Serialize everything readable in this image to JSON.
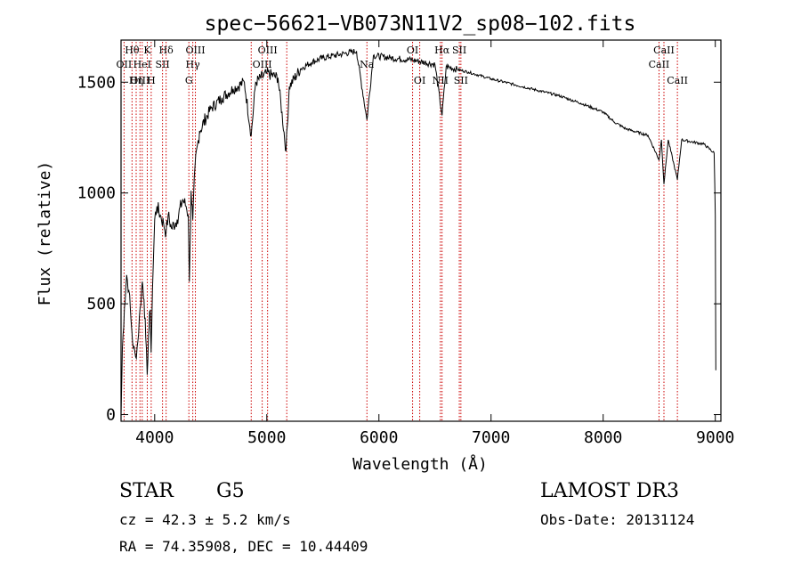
{
  "chart_data": {
    "type": "line",
    "title": "spec−56621−VB073N11V2_sp08−102.fits",
    "xlabel": "Wavelength (Å)",
    "ylabel": "Flux (relative)",
    "xlim": [
      3700,
      9050
    ],
    "ylim": [
      -30,
      1690
    ],
    "x_ticks": [
      4000,
      5000,
      6000,
      7000,
      8000,
      9000
    ],
    "x_tick_labels": [
      "4000",
      "5000",
      "6000",
      "7000",
      "8000",
      "9000"
    ],
    "y_ticks": [
      0,
      500,
      1000,
      1500
    ],
    "y_tick_labels": [
      "0",
      "500",
      "1000",
      "1500"
    ],
    "line_color": "#000000",
    "marker_color": "#cc0000",
    "spectrum_anchors": [
      {
        "x": 3700,
        "y": 0
      },
      {
        "x": 3712,
        "y": 300
      },
      {
        "x": 3730,
        "y": 480
      },
      {
        "x": 3750,
        "y": 630
      },
      {
        "x": 3770,
        "y": 560
      },
      {
        "x": 3790,
        "y": 420
      },
      {
        "x": 3810,
        "y": 300
      },
      {
        "x": 3830,
        "y": 260
      },
      {
        "x": 3850,
        "y": 330
      },
      {
        "x": 3870,
        "y": 480
      },
      {
        "x": 3890,
        "y": 600
      },
      {
        "x": 3905,
        "y": 520
      },
      {
        "x": 3920,
        "y": 350
      },
      {
        "x": 3933,
        "y": 180
      },
      {
        "x": 3945,
        "y": 360
      },
      {
        "x": 3960,
        "y": 470
      },
      {
        "x": 3968,
        "y": 280
      },
      {
        "x": 3980,
        "y": 560
      },
      {
        "x": 4000,
        "y": 880
      },
      {
        "x": 4020,
        "y": 940
      },
      {
        "x": 4050,
        "y": 900
      },
      {
        "x": 4080,
        "y": 860
      },
      {
        "x": 4102,
        "y": 820
      },
      {
        "x": 4120,
        "y": 900
      },
      {
        "x": 4150,
        "y": 840
      },
      {
        "x": 4200,
        "y": 880
      },
      {
        "x": 4250,
        "y": 970
      },
      {
        "x": 4280,
        "y": 940
      },
      {
        "x": 4300,
        "y": 900
      },
      {
        "x": 4310,
        "y": 600
      },
      {
        "x": 4325,
        "y": 1010
      },
      {
        "x": 4340,
        "y": 880
      },
      {
        "x": 4360,
        "y": 1120
      },
      {
        "x": 4400,
        "y": 1280
      },
      {
        "x": 4500,
        "y": 1380
      },
      {
        "x": 4600,
        "y": 1430
      },
      {
        "x": 4700,
        "y": 1470
      },
      {
        "x": 4800,
        "y": 1500
      },
      {
        "x": 4861,
        "y": 1260
      },
      {
        "x": 4900,
        "y": 1500
      },
      {
        "x": 5000,
        "y": 1540
      },
      {
        "x": 5100,
        "y": 1520
      },
      {
        "x": 5172,
        "y": 1190
      },
      {
        "x": 5200,
        "y": 1480
      },
      {
        "x": 5300,
        "y": 1560
      },
      {
        "x": 5400,
        "y": 1590
      },
      {
        "x": 5500,
        "y": 1610
      },
      {
        "x": 5600,
        "y": 1620
      },
      {
        "x": 5700,
        "y": 1630
      },
      {
        "x": 5800,
        "y": 1640
      },
      {
        "x": 5893,
        "y": 1330
      },
      {
        "x": 5950,
        "y": 1620
      },
      {
        "x": 6100,
        "y": 1610
      },
      {
        "x": 6300,
        "y": 1600
      },
      {
        "x": 6500,
        "y": 1580
      },
      {
        "x": 6563,
        "y": 1350
      },
      {
        "x": 6600,
        "y": 1570
      },
      {
        "x": 6800,
        "y": 1545
      },
      {
        "x": 7000,
        "y": 1515
      },
      {
        "x": 7200,
        "y": 1490
      },
      {
        "x": 7400,
        "y": 1465
      },
      {
        "x": 7600,
        "y": 1440
      },
      {
        "x": 7800,
        "y": 1405
      },
      {
        "x": 8000,
        "y": 1365
      },
      {
        "x": 8100,
        "y": 1320
      },
      {
        "x": 8200,
        "y": 1290
      },
      {
        "x": 8400,
        "y": 1260
      },
      {
        "x": 8498,
        "y": 1150
      },
      {
        "x": 8520,
        "y": 1240
      },
      {
        "x": 8542,
        "y": 1040
      },
      {
        "x": 8580,
        "y": 1240
      },
      {
        "x": 8662,
        "y": 1060
      },
      {
        "x": 8700,
        "y": 1240
      },
      {
        "x": 8900,
        "y": 1220
      },
      {
        "x": 8990,
        "y": 1180
      },
      {
        "x": 9000,
        "y": 900
      },
      {
        "x": 9005,
        "y": 200
      }
    ],
    "spectral_lines": [
      {
        "label": "Hθ",
        "x": 3798,
        "row": 0
      },
      {
        "label": "OII",
        "x": 3727,
        "row": 1
      },
      {
        "label": "OIII",
        "x": 3869,
        "row": 2
      },
      {
        "label": "K",
        "x": 3934,
        "row": 0
      },
      {
        "label": "HeI",
        "x": 3889,
        "row": 1
      },
      {
        "label": "Hη",
        "x": 3835,
        "row": 2
      },
      {
        "label": "H",
        "x": 3969,
        "row": 2
      },
      {
        "label": "Hδ",
        "x": 4102,
        "row": 0
      },
      {
        "label": "SII",
        "x": 4070,
        "row": 1
      },
      {
        "label": "OIII",
        "x": 4363,
        "row": 0
      },
      {
        "label": "Hγ",
        "x": 4340,
        "row": 1
      },
      {
        "label": "G",
        "x": 4305,
        "row": 2
      },
      {
        "label": "OIII",
        "x": 5007,
        "row": 0
      },
      {
        "label": "OIII",
        "x": 4959,
        "row": 1
      },
      {
        "label": "",
        "x": 4861,
        "row": 0
      },
      {
        "label": "",
        "x": 5178,
        "row": 0
      },
      {
        "label": "Na",
        "x": 5893,
        "row": 1
      },
      {
        "label": "OI",
        "x": 6300,
        "row": 0
      },
      {
        "label": "OI",
        "x": 6364,
        "row": 2
      },
      {
        "label": "Hα",
        "x": 6563,
        "row": 0
      },
      {
        "label": "SII",
        "x": 6717,
        "row": 0
      },
      {
        "label": "NII",
        "x": 6548,
        "row": 2
      },
      {
        "label": "SII",
        "x": 6731,
        "row": 2
      },
      {
        "label": "CaII",
        "x": 8542,
        "row": 0
      },
      {
        "label": "CaII",
        "x": 8498,
        "row": 1
      },
      {
        "label": "CaII",
        "x": 8662,
        "row": 2
      }
    ]
  },
  "info": {
    "object_class": "STAR",
    "subclass": "G5",
    "redshift": "cz = 42.3 ± 5.2 km/s",
    "coordinates": "RA =  74.35908, DEC =  10.44409",
    "survey": "LAMOST DR3",
    "obs_date": "Obs-Date: 20131124"
  }
}
